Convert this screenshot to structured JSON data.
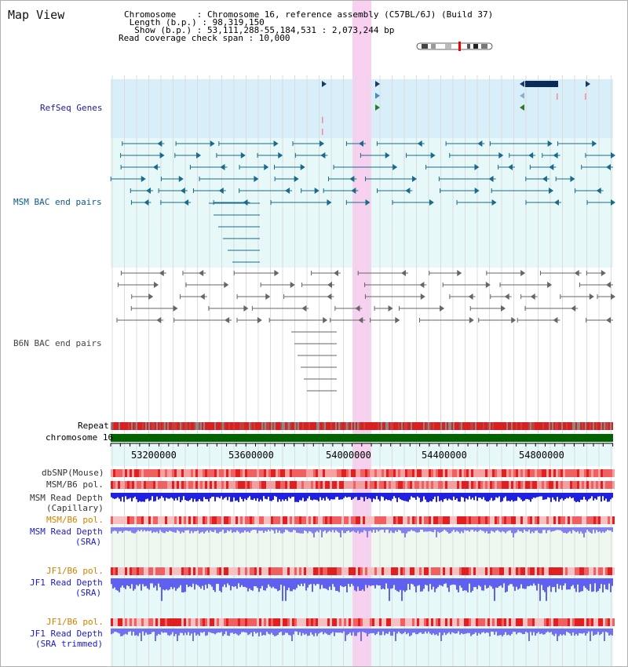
{
  "title": "Map View",
  "header": {
    "chromosome": "Chromosome    : Chromosome 16, reference assembly (C57BL/6J) (Build 37)",
    "length": " Length (b.p.) : 98,319,150",
    "show": "  Show (b.p.) : 53,111,288-55,184,531 : 2,073,244 bp",
    "coverage": "Read coverage check span : 10,000"
  },
  "tracks": {
    "refseq": "RefSeq Genes",
    "msm_bac": "MSM BAC end pairs",
    "b6n_bac": "B6N BAC end pairs",
    "repeat": "Repeat",
    "chromosome": "chromosome 16",
    "dbsnp": "dbSNP(Mouse)",
    "msm_b6_pol_1": "MSM/B6 pol.",
    "msm_depth_cap_1": "MSM Read Depth",
    "msm_depth_cap_2": "(Capillary)",
    "msm_b6_pol_2": "MSM/B6 pol.",
    "msm_depth_sra_1": "MSM Read Depth",
    "msm_depth_sra_2": "(SRA)",
    "jf1_b6_pol_1": "JF1/B6 pol.",
    "jf1_depth_1": "JF1 Read Depth",
    "jf1_depth_2": "(SRA)",
    "jf1_b6_pol_2": "JF1/B6 pol.",
    "jf1_trim_1": "JF1 Read Depth",
    "jf1_trim_2": "(SRA trimmed)"
  },
  "axis": {
    "ticks": [
      "53200000",
      "53600000",
      "54000000",
      "54400000",
      "54800000"
    ]
  },
  "colors": {
    "refseq_label": "#1a1aa8",
    "msm_label": "#0a5a8a",
    "b6n_label": "#444444",
    "msm_pol_label": "#d08000",
    "depth_label": "#1a1ad0",
    "highlight": "#f8d0f0",
    "chrom_bar": "#006400"
  }
}
